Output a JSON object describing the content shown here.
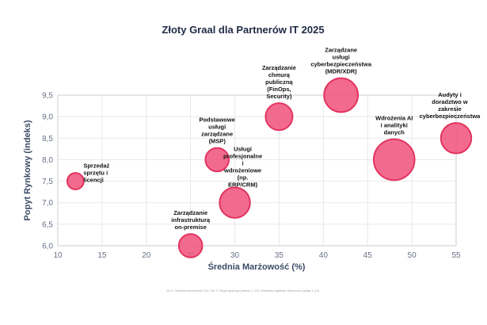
{
  "chart_data": {
    "type": "scatter",
    "title": "Złoty Graal dla Partnerów IT 2025",
    "xlabel": "Średnia Marżowość (%)",
    "ylabel": "Popyt Rynkowy (indeks)",
    "xlim": [
      10,
      55
    ],
    "ylim": [
      6.0,
      9.5
    ],
    "xticks": [
      "10",
      "15",
      "20",
      "25",
      "30",
      "35",
      "40",
      "45",
      "50",
      "55"
    ],
    "yticks": [
      "6,0",
      "6,5",
      "7,0",
      "7,5",
      "8,0",
      "8,5",
      "9,0",
      "9,5"
    ],
    "grid": true,
    "footnote": "Oś X: Średnia marżowość (%), Oś Y: Popyt rynkowy (indeks 1-10). Wielkość bąbelka: Złożoność (skala 1-10).",
    "points": [
      {
        "label": [
          "Sprzedaż",
          "sprzętu i",
          "licencji"
        ],
        "x": 12,
        "y": 7.5,
        "size": 2
      },
      {
        "label": [
          "Zarządzanie",
          "infrastrukturą",
          "on-premise"
        ],
        "x": 25,
        "y": 6.0,
        "size": 4
      },
      {
        "label": [
          "Podstawowe",
          "usługi",
          "zarządzane",
          "(MSP)"
        ],
        "x": 28,
        "y": 8.0,
        "size": 4
      },
      {
        "label": [
          "Usługi",
          "profesjonalne",
          "i",
          "wdrożeniowe",
          "(np.",
          "ERP/CRM)"
        ],
        "x": 30,
        "y": 7.0,
        "size": 6
      },
      {
        "label": [
          "Zarządzanie",
          "chmurą",
          "publiczną",
          "(FinOps,",
          "Security)"
        ],
        "x": 35,
        "y": 9.0,
        "size": 5
      },
      {
        "label": [
          "Zarządzane",
          "usługi",
          "cyberbezpieczeństwa",
          "(MDR/XDR)"
        ],
        "x": 42,
        "y": 9.5,
        "size": 7
      },
      {
        "label": [
          "Wdrożenia AI",
          "i analityki",
          "danych"
        ],
        "x": 48,
        "y": 8.0,
        "size": 9
      },
      {
        "label": [
          "Audyty i",
          "doradztwo w",
          "zakresie",
          "cyberbezpieczeństwa"
        ],
        "x": 55,
        "y": 8.5,
        "size": 6
      }
    ]
  }
}
